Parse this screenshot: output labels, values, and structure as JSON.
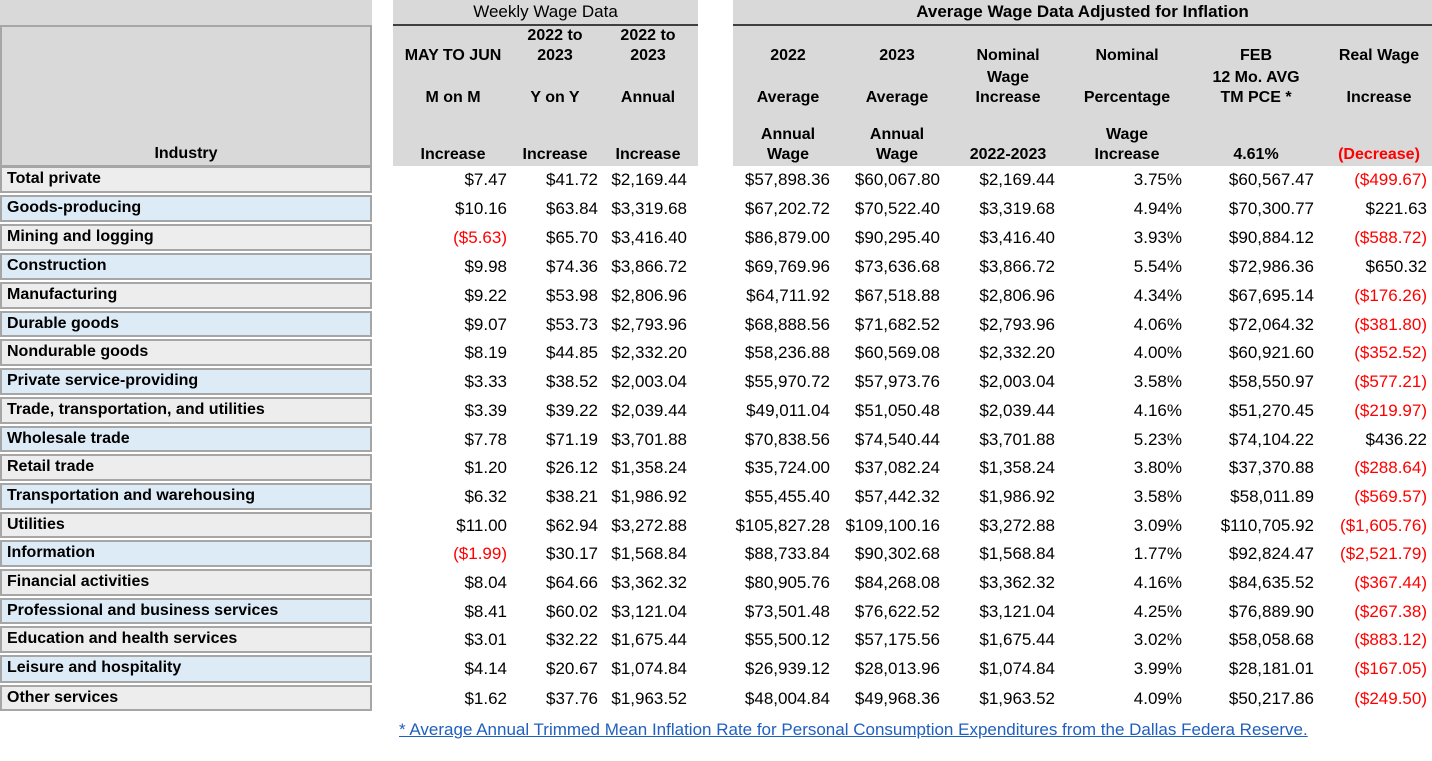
{
  "headers": {
    "industry": "Industry",
    "weekly_title": "Weekly Wage Data",
    "inflation_title": "Average Wage Data Adjusted for Inflation",
    "col1": [
      "MAY TO JUN",
      "M on M",
      "Increase"
    ],
    "col2": [
      "2022 to",
      "2023",
      "Y on Y",
      "Increase"
    ],
    "col3": [
      "2022 to",
      "2023",
      "Annual",
      "Increase"
    ],
    "col4": [
      "2022",
      "Average",
      "Annual",
      "Wage"
    ],
    "col5": [
      "2023",
      "Average",
      "Annual",
      "Wage"
    ],
    "col6": [
      "Nominal",
      "Wage",
      "Increase",
      "2022-2023"
    ],
    "col7": [
      "Nominal",
      "Percentage",
      "Wage",
      "Increase"
    ],
    "col8": [
      "FEB",
      "12 Mo. AVG",
      "TM PCE *",
      "4.61%"
    ],
    "col9": [
      "Real Wage",
      "Increase",
      "(Decrease)"
    ]
  },
  "rows": [
    [
      "Total private",
      "$7.47",
      "$41.72",
      "$2,169.44",
      "$57,898.36",
      "$60,067.80",
      "$2,169.44",
      "3.75%",
      "$60,567.47",
      "($499.67)"
    ],
    [
      "Goods-producing",
      "$10.16",
      "$63.84",
      "$3,319.68",
      "$67,202.72",
      "$70,522.40",
      "$3,319.68",
      "4.94%",
      "$70,300.77",
      "$221.63"
    ],
    [
      "Mining and logging",
      "($5.63)",
      "$65.70",
      "$3,416.40",
      "$86,879.00",
      "$90,295.40",
      "$3,416.40",
      "3.93%",
      "$90,884.12",
      "($588.72)"
    ],
    [
      "Construction",
      "$9.98",
      "$74.36",
      "$3,866.72",
      "$69,769.96",
      "$73,636.68",
      "$3,866.72",
      "5.54%",
      "$72,986.36",
      "$650.32"
    ],
    [
      "Manufacturing",
      "$9.22",
      "$53.98",
      "$2,806.96",
      "$64,711.92",
      "$67,518.88",
      "$2,806.96",
      "4.34%",
      "$67,695.14",
      "($176.26)"
    ],
    [
      "Durable goods",
      "$9.07",
      "$53.73",
      "$2,793.96",
      "$68,888.56",
      "$71,682.52",
      "$2,793.96",
      "4.06%",
      "$72,064.32",
      "($381.80)"
    ],
    [
      "Nondurable goods",
      "$8.19",
      "$44.85",
      "$2,332.20",
      "$58,236.88",
      "$60,569.08",
      "$2,332.20",
      "4.00%",
      "$60,921.60",
      "($352.52)"
    ],
    [
      "Private service-providing",
      "$3.33",
      "$38.52",
      "$2,003.04",
      "$55,970.72",
      "$57,973.76",
      "$2,003.04",
      "3.58%",
      "$58,550.97",
      "($577.21)"
    ],
    [
      "Trade, transportation, and utilities",
      "$3.39",
      "$39.22",
      "$2,039.44",
      "$49,011.04",
      "$51,050.48",
      "$2,039.44",
      "4.16%",
      "$51,270.45",
      "($219.97)"
    ],
    [
      "Wholesale trade",
      "$7.78",
      "$71.19",
      "$3,701.88",
      "$70,838.56",
      "$74,540.44",
      "$3,701.88",
      "5.23%",
      "$74,104.22",
      "$436.22"
    ],
    [
      "Retail trade",
      "$1.20",
      "$26.12",
      "$1,358.24",
      "$35,724.00",
      "$37,082.24",
      "$1,358.24",
      "3.80%",
      "$37,370.88",
      "($288.64)"
    ],
    [
      "Transportation and warehousing",
      "$6.32",
      "$38.21",
      "$1,986.92",
      "$55,455.40",
      "$57,442.32",
      "$1,986.92",
      "3.58%",
      "$58,011.89",
      "($569.57)"
    ],
    [
      "Utilities",
      "$11.00",
      "$62.94",
      "$3,272.88",
      "$105,827.28",
      "$109,100.16",
      "$3,272.88",
      "3.09%",
      "$110,705.92",
      "($1,605.76)"
    ],
    [
      "Information",
      "($1.99)",
      "$30.17",
      "$1,568.84",
      "$88,733.84",
      "$90,302.68",
      "$1,568.84",
      "1.77%",
      "$92,824.47",
      "($2,521.79)"
    ],
    [
      "Financial activities",
      "$8.04",
      "$64.66",
      "$3,362.32",
      "$80,905.76",
      "$84,268.08",
      "$3,362.32",
      "4.16%",
      "$84,635.52",
      "($367.44)"
    ],
    [
      "Professional and business services",
      "$8.41",
      "$60.02",
      "$3,121.04",
      "$73,501.48",
      "$76,622.52",
      "$3,121.04",
      "4.25%",
      "$76,889.90",
      "($267.38)"
    ],
    [
      "Education and health services",
      "$3.01",
      "$32.22",
      "$1,675.44",
      "$55,500.12",
      "$57,175.56",
      "$1,675.44",
      "3.02%",
      "$58,058.68",
      "($883.12)"
    ],
    [
      "Leisure and hospitality",
      "$4.14",
      "$20.67",
      "$1,074.84",
      "$26,939.12",
      "$28,013.96",
      "$1,074.84",
      "3.99%",
      "$28,181.01",
      "($167.05)"
    ],
    [
      "Other services",
      "$1.62",
      "$37.76",
      "$1,963.52",
      "$48,004.84",
      "$49,968.36",
      "$1,963.52",
      "4.09%",
      "$50,217.86",
      "($249.50)"
    ]
  ],
  "footnote": "* Average Annual Trimmed Mean Inflation Rate for Personal Consumption Expenditures from the Dallas Federa Reserve.",
  "colors": {
    "negative": "#ff0000",
    "link": "#1f5fbf",
    "header_bg": "#d9d9d9",
    "row_odd": "#ededed",
    "row_even": "#ddebf7"
  }
}
